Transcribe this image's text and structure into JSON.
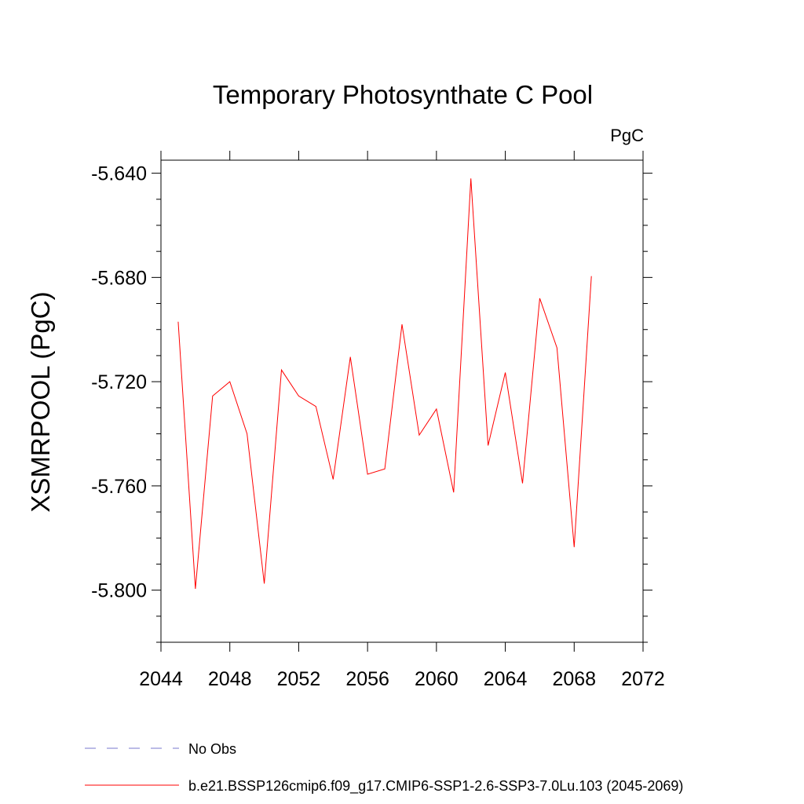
{
  "chart_data": {
    "type": "line",
    "title": "Temporary Photosynthate C Pool",
    "units_label": "PgC",
    "ylabel": "XSMRPOOL  (PgC)",
    "xlabel": "",
    "xlim": [
      2044,
      2072
    ],
    "ylim": [
      -5.82,
      -5.635
    ],
    "x_ticks": [
      2044,
      2048,
      2052,
      2056,
      2060,
      2064,
      2068,
      2072
    ],
    "x_tick_labels": [
      "2044",
      "2048",
      "2052",
      "2056",
      "2060",
      "2064",
      "2068",
      "2072"
    ],
    "y_ticks": [
      -5.64,
      -5.68,
      -5.72,
      -5.76,
      -5.8
    ],
    "y_tick_labels": [
      "-5.640",
      "-5.680",
      "-5.720",
      "-5.760",
      "-5.800"
    ],
    "grid": false,
    "legend_position": "bottom",
    "series": [
      {
        "name": "b.e21.BSSP126cmip6.f09_g17.CMIP6-SSP1-2.6-SSP3-7.0Lu.103 (2045-2069)",
        "color": "#ff0000",
        "style": "solid",
        "x": [
          2045,
          2046,
          2047,
          2048,
          2049,
          2050,
          2051,
          2052,
          2053,
          2054,
          2055,
          2056,
          2057,
          2058,
          2059,
          2060,
          2061,
          2062,
          2063,
          2064,
          2065,
          2066,
          2067,
          2068,
          2069
        ],
        "y": [
          -5.697,
          -5.7995,
          -5.7255,
          -5.72,
          -5.74,
          -5.7975,
          -5.7155,
          -5.7255,
          -5.7295,
          -5.7575,
          -5.7105,
          -5.7555,
          -5.7535,
          -5.698,
          -5.7405,
          -5.7305,
          -5.7625,
          -5.642,
          -5.7445,
          -5.7165,
          -5.759,
          -5.688,
          -5.707,
          -5.7835,
          -5.6795
        ]
      },
      {
        "name": "No Obs",
        "color": "#7777cc",
        "style": "dashed",
        "x": [],
        "y": []
      }
    ]
  }
}
